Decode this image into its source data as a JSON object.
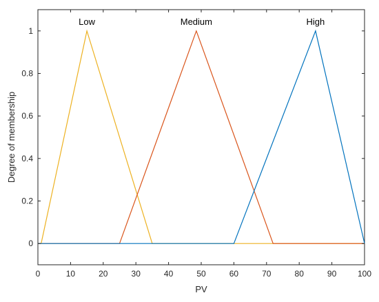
{
  "chart_data": {
    "type": "line",
    "xlabel": "PV",
    "ylabel": "Degree of membership",
    "xlim": [
      0,
      100
    ],
    "ylim": [
      -0.1,
      1.1
    ],
    "xticks": [
      "0",
      "10",
      "20",
      "30",
      "40",
      "50",
      "60",
      "70",
      "80",
      "90",
      "100"
    ],
    "yticks": [
      "0",
      "0.2",
      "0.4",
      "0.6",
      "0.8",
      "1"
    ],
    "grid": false,
    "series": [
      {
        "name": "Low",
        "color": "#EDB120",
        "x": [
          0,
          1,
          15,
          35,
          100
        ],
        "y": [
          0,
          0,
          1,
          0,
          0
        ]
      },
      {
        "name": "Medium",
        "color": "#D95319",
        "x": [
          0,
          25,
          48.5,
          72,
          100
        ],
        "y": [
          0,
          0,
          1,
          0,
          0
        ]
      },
      {
        "name": "High",
        "color": "#0072BD",
        "x": [
          0,
          60,
          85,
          100
        ],
        "y": [
          0,
          0,
          1,
          0
        ]
      }
    ]
  }
}
